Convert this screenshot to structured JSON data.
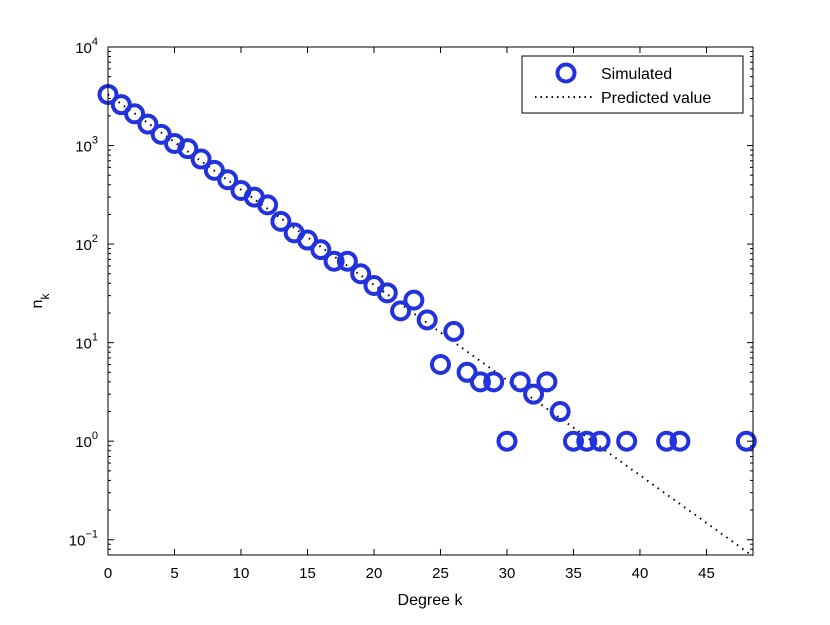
{
  "chart_data": {
    "type": "scatter",
    "title": "",
    "xlabel": "Degree k",
    "ylabel": "n",
    "ylabel_subscript": "k",
    "xlim": [
      0,
      48.5
    ],
    "ylim": [
      0.07,
      10000
    ],
    "yscale": "log",
    "grid": false,
    "legend_placement": "top-right",
    "x_ticks": [
      0,
      5,
      10,
      15,
      20,
      25,
      30,
      35,
      40,
      45
    ],
    "y_ticks": [
      {
        "value": 0.1,
        "base": "10",
        "exp": "−1"
      },
      {
        "value": 1,
        "base": "10",
        "exp": "0"
      },
      {
        "value": 10,
        "base": "10",
        "exp": "1"
      },
      {
        "value": 100,
        "base": "10",
        "exp": "2"
      },
      {
        "value": 1000,
        "base": "10",
        "exp": "3"
      },
      {
        "value": 10000,
        "base": "10",
        "exp": "4"
      }
    ],
    "series": [
      {
        "name": "Simulated",
        "style": "markers",
        "marker": "circle",
        "color": "#2233dd",
        "x": [
          0,
          1,
          2,
          3,
          4,
          5,
          6,
          7,
          8,
          9,
          10,
          11,
          12,
          13,
          14,
          15,
          16,
          17,
          18,
          19,
          20,
          21,
          22,
          23,
          24,
          25,
          26,
          27,
          28,
          29,
          30,
          31,
          32,
          33,
          34,
          35,
          36,
          37,
          39,
          42,
          43,
          48
        ],
        "y": [
          3300,
          2600,
          2100,
          1650,
          1300,
          1050,
          930,
          730,
          560,
          450,
          350,
          300,
          250,
          170,
          130,
          110,
          88,
          67,
          67,
          50,
          38,
          32,
          21,
          27,
          17,
          6,
          13,
          5,
          4,
          4,
          1,
          4,
          3,
          4,
          2,
          1,
          1,
          1,
          1,
          1,
          1,
          1
        ]
      },
      {
        "name": "Predicted value",
        "style": "dotted-line",
        "color": "#000000",
        "x": [
          0,
          48.5
        ],
        "y": [
          3300,
          0.068
        ]
      }
    ]
  }
}
